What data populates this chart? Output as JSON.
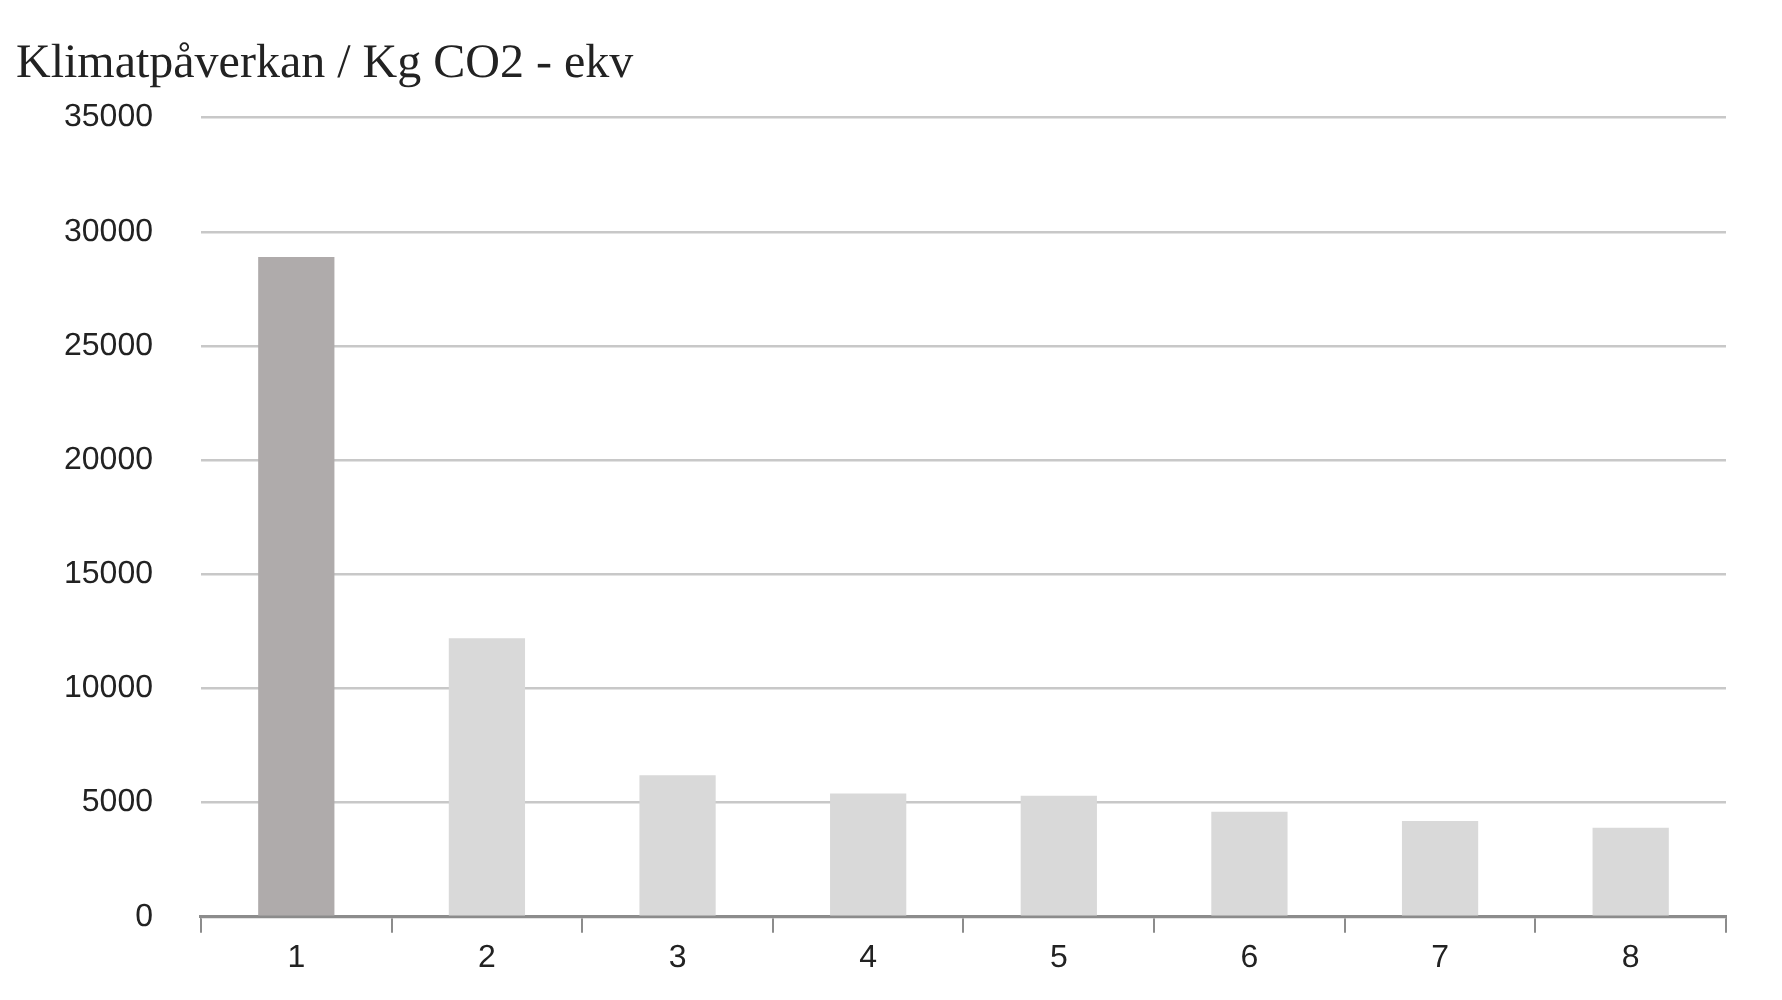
{
  "chart_data": {
    "type": "bar",
    "title": "Klimatpåverkan / Kg CO2 - ekv",
    "categories": [
      "1",
      "2",
      "3",
      "4",
      "5",
      "6",
      "7",
      "8"
    ],
    "values": [
      28900,
      12200,
      6200,
      5400,
      5300,
      4600,
      4200,
      3900
    ],
    "colors": [
      "#afabab",
      "#d9d9d9",
      "#d9d9d9",
      "#d9d9d9",
      "#d9d9d9",
      "#d9d9d9",
      "#d9d9d9",
      "#d9d9d9"
    ],
    "ylim": [
      0,
      35000
    ],
    "yticks": [
      0,
      5000,
      10000,
      15000,
      20000,
      25000,
      30000,
      35000
    ],
    "grid": "y"
  }
}
